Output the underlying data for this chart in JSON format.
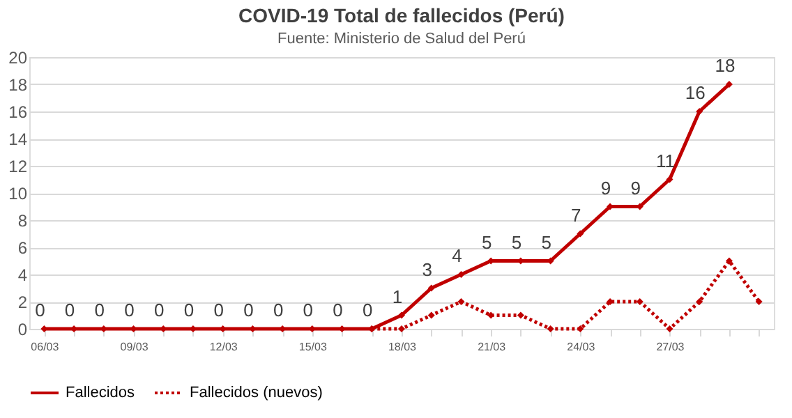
{
  "chart_data": {
    "type": "line",
    "title": "COVID-19  Total de fallecidos (Perú)",
    "subtitle": "Fuente: Ministerio de Salud del Perú",
    "categories": [
      "06/03",
      null,
      null,
      "09/03",
      null,
      null,
      "12/03",
      null,
      null,
      "15/03",
      null,
      null,
      "18/03",
      null,
      null,
      "21/03",
      null,
      null,
      "24/03",
      null,
      null,
      "27/03",
      null,
      null,
      null
    ],
    "series": [
      {
        "name": "Fallecidos",
        "color": "#c00000",
        "line_style": "solid",
        "values": [
          0,
          0,
          0,
          0,
          0,
          0,
          0,
          0,
          0,
          0,
          0,
          0,
          1,
          3,
          4,
          5,
          5,
          5,
          7,
          9,
          9,
          11,
          16,
          18,
          null
        ],
        "value_labels": [
          "0",
          "0",
          "0",
          "0",
          "0",
          "0",
          "0",
          "0",
          "0",
          "0",
          "0",
          "0",
          "1",
          "3",
          "4",
          "5",
          "5",
          "5",
          "7",
          "9",
          "9",
          "11",
          "16",
          "18",
          null
        ]
      },
      {
        "name": "Fallecidos (nuevos)",
        "color": "#c00000",
        "line_style": "dotted",
        "values": [
          null,
          null,
          null,
          null,
          null,
          null,
          null,
          null,
          null,
          null,
          null,
          0,
          0,
          1,
          2,
          1,
          1,
          0,
          0,
          2,
          2,
          0,
          2,
          5,
          2
        ]
      }
    ],
    "ylim": [
      0,
      20
    ],
    "yticks": [
      0,
      2,
      4,
      6,
      8,
      10,
      12,
      14,
      16,
      18,
      20
    ],
    "grid": "y",
    "legend": "bottom",
    "marker": "diamond"
  }
}
